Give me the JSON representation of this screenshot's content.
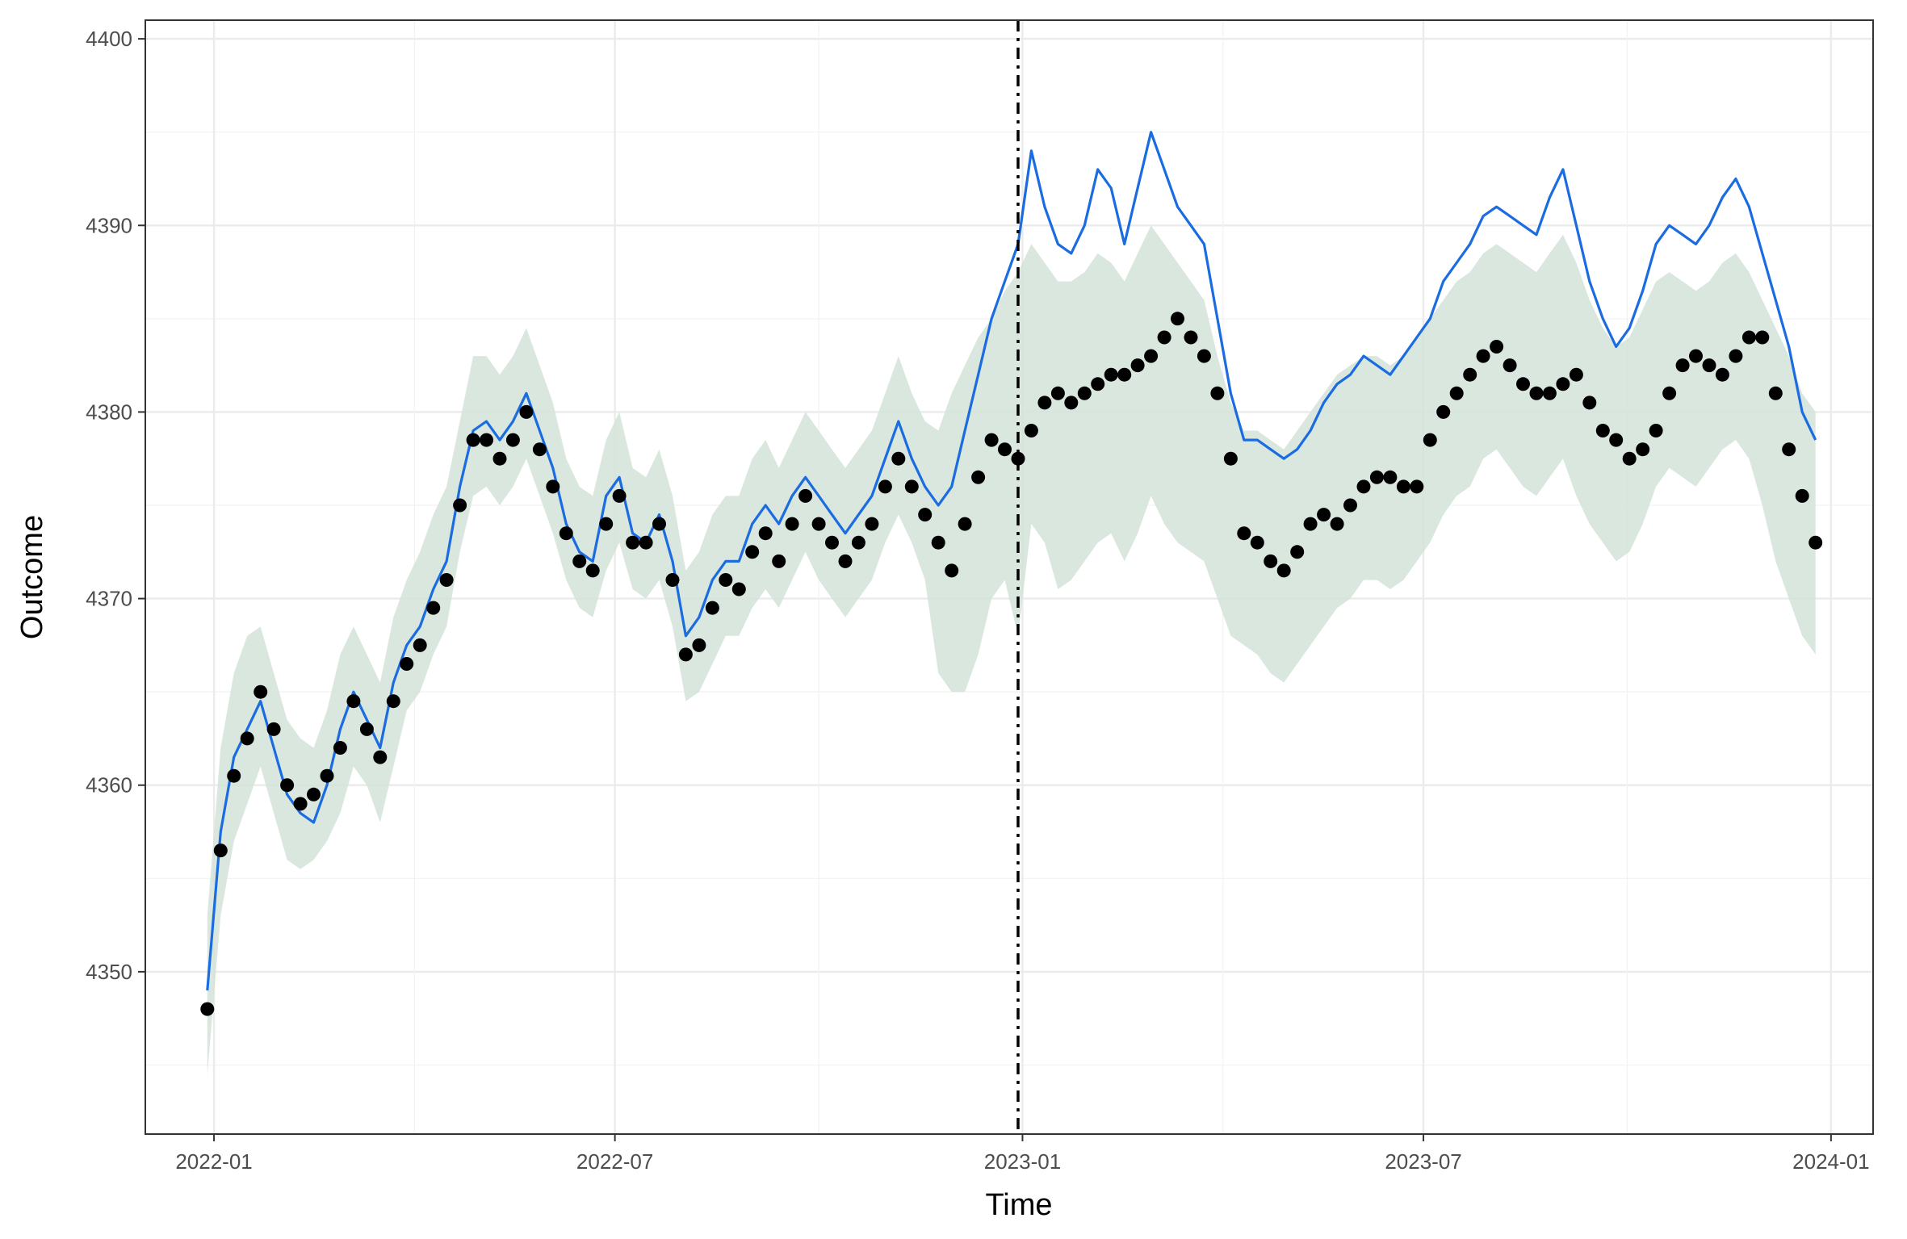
{
  "chart_data": {
    "type": "line",
    "xlabel": "Time",
    "ylabel": "Outcome",
    "xlim": [
      "2021-12-01",
      "2024-01-20"
    ],
    "ylim": [
      4341.3,
      4401.0
    ],
    "x_ticks": [
      {
        "date": "2022-01-01",
        "label": "2022-01"
      },
      {
        "date": "2022-07-01",
        "label": "2022-07"
      },
      {
        "date": "2023-01-01",
        "label": "2023-01"
      },
      {
        "date": "2023-07-01",
        "label": "2023-07"
      },
      {
        "date": "2024-01-01",
        "label": "2024-01"
      }
    ],
    "y_ticks": [
      4350,
      4360,
      4370,
      4380,
      4390,
      4400
    ],
    "grid": true,
    "intervention_date": "2022-12-30",
    "series": [
      {
        "kind": "points",
        "color": "#000000",
        "x": [
          "2021-12-29",
          "2022-01-04",
          "2022-01-10",
          "2022-01-16",
          "2022-01-22",
          "2022-01-28",
          "2022-02-03",
          "2022-02-09",
          "2022-02-15",
          "2022-02-21",
          "2022-02-27",
          "2022-03-05",
          "2022-03-11",
          "2022-03-17",
          "2022-03-23",
          "2022-03-29",
          "2022-04-04",
          "2022-04-10",
          "2022-04-16",
          "2022-04-22",
          "2022-04-28",
          "2022-05-04",
          "2022-05-10",
          "2022-05-16",
          "2022-05-22",
          "2022-05-28",
          "2022-06-03",
          "2022-06-09",
          "2022-06-15",
          "2022-06-21",
          "2022-06-27",
          "2022-07-03",
          "2022-07-09",
          "2022-07-15",
          "2022-07-21",
          "2022-07-27",
          "2022-08-02",
          "2022-08-08",
          "2022-08-14",
          "2022-08-20",
          "2022-08-26",
          "2022-09-01",
          "2022-09-07",
          "2022-09-13",
          "2022-09-19",
          "2022-09-25",
          "2022-10-01",
          "2022-10-07",
          "2022-10-13",
          "2022-10-19",
          "2022-10-25",
          "2022-10-31",
          "2022-11-06",
          "2022-11-12",
          "2022-11-18",
          "2022-11-24",
          "2022-11-30",
          "2022-12-06",
          "2022-12-12",
          "2022-12-18",
          "2022-12-24",
          "2022-12-30",
          "2023-01-05",
          "2023-01-11",
          "2023-01-17",
          "2023-01-23",
          "2023-01-29",
          "2023-02-04",
          "2023-02-10",
          "2023-02-16",
          "2023-02-22",
          "2023-02-28",
          "2023-03-06",
          "2023-03-12",
          "2023-03-18",
          "2023-03-24",
          "2023-03-30",
          "2023-04-05",
          "2023-04-11",
          "2023-04-17",
          "2023-04-23",
          "2023-04-29",
          "2023-05-05",
          "2023-05-11",
          "2023-05-17",
          "2023-05-23",
          "2023-05-29",
          "2023-06-04",
          "2023-06-10",
          "2023-06-16",
          "2023-06-22",
          "2023-06-28",
          "2023-07-04",
          "2023-07-10",
          "2023-07-16",
          "2023-07-22",
          "2023-07-28",
          "2023-08-03",
          "2023-08-09",
          "2023-08-15",
          "2023-08-21",
          "2023-08-27",
          "2023-09-02",
          "2023-09-08",
          "2023-09-14",
          "2023-09-20",
          "2023-09-26",
          "2023-10-02",
          "2023-10-08",
          "2023-10-14",
          "2023-10-20",
          "2023-10-26",
          "2023-11-01",
          "2023-11-07",
          "2023-11-13",
          "2023-11-19",
          "2023-11-25",
          "2023-12-01",
          "2023-12-07",
          "2023-12-13",
          "2023-12-19",
          "2023-12-25"
        ],
        "y": [
          4348.0,
          4356.5,
          4360.5,
          4362.5,
          4365.0,
          4363.0,
          4360.0,
          4359.0,
          4359.5,
          4360.5,
          4362.0,
          4364.5,
          4363.0,
          4361.5,
          4364.5,
          4366.5,
          4367.5,
          4369.5,
          4371.0,
          4375.0,
          4378.5,
          4378.5,
          4377.5,
          4378.5,
          4380.0,
          4378.0,
          4376.0,
          4373.5,
          4372.0,
          4371.5,
          4374.0,
          4375.5,
          4373.0,
          4373.0,
          4374.0,
          4371.0,
          4367.0,
          4367.5,
          4369.5,
          4371.0,
          4370.5,
          4372.5,
          4373.5,
          4372.0,
          4374.0,
          4375.5,
          4374.0,
          4373.0,
          4372.0,
          4373.0,
          4374.0,
          4376.0,
          4377.5,
          4376.0,
          4374.5,
          4373.0,
          4371.5,
          4374.0,
          4376.5,
          4378.5,
          4378.0,
          4377.5,
          4379.0,
          4380.5,
          4381.0,
          4380.5,
          4381.0,
          4381.5,
          4382.0,
          4382.0,
          4382.5,
          4383.0,
          4384.0,
          4385.0,
          4384.0,
          4383.0,
          4381.0,
          4377.5,
          4373.5,
          4373.0,
          4372.0,
          4371.5,
          4372.5,
          4374.0,
          4374.5,
          4374.0,
          4375.0,
          4376.0,
          4376.5,
          4376.5,
          4376.0,
          4376.0,
          4378.5,
          4380.0,
          4381.0,
          4382.0,
          4383.0,
          4383.5,
          4382.5,
          4381.5,
          4381.0,
          4381.0,
          4381.5,
          4382.0,
          4380.5,
          4379.0,
          4378.5,
          4377.5,
          4378.0,
          4379.0,
          4381.0,
          4382.5,
          4383.0,
          4382.5,
          4382.0,
          4383.0,
          4384.0,
          4384.0,
          4381.0,
          4378.0,
          4375.5,
          4373.0
        ]
      },
      {
        "kind": "line",
        "color": "#1a6ce0",
        "x": [
          "2021-12-29",
          "2022-01-04",
          "2022-01-10",
          "2022-01-16",
          "2022-01-22",
          "2022-01-28",
          "2022-02-03",
          "2022-02-09",
          "2022-02-15",
          "2022-02-21",
          "2022-02-27",
          "2022-03-05",
          "2022-03-11",
          "2022-03-17",
          "2022-03-23",
          "2022-03-29",
          "2022-04-04",
          "2022-04-10",
          "2022-04-16",
          "2022-04-22",
          "2022-04-28",
          "2022-05-04",
          "2022-05-10",
          "2022-05-16",
          "2022-05-22",
          "2022-05-28",
          "2022-06-03",
          "2022-06-09",
          "2022-06-15",
          "2022-06-21",
          "2022-06-27",
          "2022-07-03",
          "2022-07-09",
          "2022-07-15",
          "2022-07-21",
          "2022-07-27",
          "2022-08-02",
          "2022-08-08",
          "2022-08-14",
          "2022-08-20",
          "2022-08-26",
          "2022-09-01",
          "2022-09-07",
          "2022-09-13",
          "2022-09-19",
          "2022-09-25",
          "2022-10-01",
          "2022-10-07",
          "2022-10-13",
          "2022-10-19",
          "2022-10-25",
          "2022-10-31",
          "2022-11-06",
          "2022-11-12",
          "2022-11-18",
          "2022-11-24",
          "2022-11-30",
          "2022-12-06",
          "2022-12-12",
          "2022-12-18",
          "2022-12-24",
          "2022-12-30",
          "2023-01-05",
          "2023-01-11",
          "2023-01-17",
          "2023-01-23",
          "2023-01-29",
          "2023-02-04",
          "2023-02-10",
          "2023-02-16",
          "2023-02-22",
          "2023-02-28",
          "2023-03-06",
          "2023-03-12",
          "2023-03-18",
          "2023-03-24",
          "2023-03-30",
          "2023-04-05",
          "2023-04-11",
          "2023-04-17",
          "2023-04-23",
          "2023-04-29",
          "2023-05-05",
          "2023-05-11",
          "2023-05-17",
          "2023-05-23",
          "2023-05-29",
          "2023-06-04",
          "2023-06-10",
          "2023-06-16",
          "2023-06-22",
          "2023-06-28",
          "2023-07-04",
          "2023-07-10",
          "2023-07-16",
          "2023-07-22",
          "2023-07-28",
          "2023-08-03",
          "2023-08-09",
          "2023-08-15",
          "2023-08-21",
          "2023-08-27",
          "2023-09-02",
          "2023-09-08",
          "2023-09-14",
          "2023-09-20",
          "2023-09-26",
          "2023-10-02",
          "2023-10-08",
          "2023-10-14",
          "2023-10-20",
          "2023-10-26",
          "2023-11-01",
          "2023-11-07",
          "2023-11-13",
          "2023-11-19",
          "2023-11-25",
          "2023-12-01",
          "2023-12-07",
          "2023-12-13",
          "2023-12-19",
          "2023-12-25"
        ],
        "y": [
          4349.0,
          4357.5,
          4361.5,
          4363.0,
          4364.5,
          4362.0,
          4359.5,
          4358.5,
          4358.0,
          4360.0,
          4363.0,
          4365.0,
          4363.5,
          4362.0,
          4365.5,
          4367.5,
          4368.5,
          4370.5,
          4372.0,
          4376.0,
          4379.0,
          4379.5,
          4378.5,
          4379.5,
          4381.0,
          4379.0,
          4377.0,
          4374.0,
          4372.5,
          4372.0,
          4375.5,
          4376.5,
          4373.5,
          4373.0,
          4374.5,
          4372.0,
          4368.0,
          4369.0,
          4371.0,
          4372.0,
          4372.0,
          4374.0,
          4375.0,
          4374.0,
          4375.5,
          4376.5,
          4375.5,
          4374.5,
          4373.5,
          4374.5,
          4375.5,
          4377.5,
          4379.5,
          4377.5,
          4376.0,
          4375.0,
          4376.0,
          4379.0,
          4382.0,
          4385.0,
          4387.0,
          4389.0,
          4394.0,
          4391.0,
          4389.0,
          4388.5,
          4390.0,
          4393.0,
          4392.0,
          4389.0,
          4392.0,
          4395.0,
          4393.0,
          4391.0,
          4390.0,
          4389.0,
          4385.0,
          4381.0,
          4378.5,
          4378.5,
          4378.0,
          4377.5,
          4378.0,
          4379.0,
          4380.5,
          4381.5,
          4382.0,
          4383.0,
          4382.5,
          4382.0,
          4383.0,
          4384.0,
          4385.0,
          4387.0,
          4388.0,
          4389.0,
          4390.5,
          4391.0,
          4390.5,
          4390.0,
          4389.5,
          4391.5,
          4393.0,
          4390.0,
          4387.0,
          4385.0,
          4383.5,
          4384.5,
          4386.5,
          4389.0,
          4390.0,
          4389.5,
          4389.0,
          4390.0,
          4391.5,
          4392.5,
          4391.0,
          4388.5,
          4386.0,
          4383.5,
          4380.0,
          4378.5
        ]
      },
      {
        "kind": "band",
        "color": "#d4e3d9",
        "x": [
          "2021-12-29",
          "2022-01-04",
          "2022-01-10",
          "2022-01-16",
          "2022-01-22",
          "2022-01-28",
          "2022-02-03",
          "2022-02-09",
          "2022-02-15",
          "2022-02-21",
          "2022-02-27",
          "2022-03-05",
          "2022-03-11",
          "2022-03-17",
          "2022-03-23",
          "2022-03-29",
          "2022-04-04",
          "2022-04-10",
          "2022-04-16",
          "2022-04-22",
          "2022-04-28",
          "2022-05-04",
          "2022-05-10",
          "2022-05-16",
          "2022-05-22",
          "2022-05-28",
          "2022-06-03",
          "2022-06-09",
          "2022-06-15",
          "2022-06-21",
          "2022-06-27",
          "2022-07-03",
          "2022-07-09",
          "2022-07-15",
          "2022-07-21",
          "2022-07-27",
          "2022-08-02",
          "2022-08-08",
          "2022-08-14",
          "2022-08-20",
          "2022-08-26",
          "2022-09-01",
          "2022-09-07",
          "2022-09-13",
          "2022-09-19",
          "2022-09-25",
          "2022-10-01",
          "2022-10-07",
          "2022-10-13",
          "2022-10-19",
          "2022-10-25",
          "2022-10-31",
          "2022-11-06",
          "2022-11-12",
          "2022-11-18",
          "2022-11-24",
          "2022-11-30",
          "2022-12-06",
          "2022-12-12",
          "2022-12-18",
          "2022-12-24",
          "2022-12-30",
          "2023-01-05",
          "2023-01-11",
          "2023-01-17",
          "2023-01-23",
          "2023-01-29",
          "2023-02-04",
          "2023-02-10",
          "2023-02-16",
          "2023-02-22",
          "2023-02-28",
          "2023-03-06",
          "2023-03-12",
          "2023-03-18",
          "2023-03-24",
          "2023-03-30",
          "2023-04-05",
          "2023-04-11",
          "2023-04-17",
          "2023-04-23",
          "2023-04-29",
          "2023-05-05",
          "2023-05-11",
          "2023-05-17",
          "2023-05-23",
          "2023-05-29",
          "2023-06-04",
          "2023-06-10",
          "2023-06-16",
          "2023-06-22",
          "2023-06-28",
          "2023-07-04",
          "2023-07-10",
          "2023-07-16",
          "2023-07-22",
          "2023-07-28",
          "2023-08-03",
          "2023-08-09",
          "2023-08-15",
          "2023-08-21",
          "2023-08-27",
          "2023-09-02",
          "2023-09-08",
          "2023-09-14",
          "2023-09-20",
          "2023-09-26",
          "2023-10-02",
          "2023-10-08",
          "2023-10-14",
          "2023-10-20",
          "2023-10-26",
          "2023-11-01",
          "2023-11-07",
          "2023-11-13",
          "2023-11-19",
          "2023-11-25",
          "2023-12-01",
          "2023-12-07",
          "2023-12-13",
          "2023-12-19",
          "2023-12-25"
        ],
        "lower": [
          4344.5,
          4353.0,
          4357.0,
          4359.0,
          4361.0,
          4358.5,
          4356.0,
          4355.5,
          4356.0,
          4357.0,
          4358.5,
          4361.0,
          4360.0,
          4358.0,
          4361.0,
          4364.0,
          4365.0,
          4367.0,
          4368.5,
          4372.5,
          4375.5,
          4376.0,
          4375.0,
          4376.0,
          4377.5,
          4375.5,
          4373.5,
          4371.0,
          4369.5,
          4369.0,
          4371.5,
          4373.0,
          4370.5,
          4370.0,
          4371.0,
          4368.5,
          4364.5,
          4365.0,
          4366.5,
          4368.0,
          4368.0,
          4369.5,
          4370.5,
          4369.5,
          4371.0,
          4372.5,
          4371.0,
          4370.0,
          4369.0,
          4370.0,
          4371.0,
          4373.0,
          4374.5,
          4373.0,
          4371.0,
          4366.0,
          4365.0,
          4365.0,
          4367.0,
          4370.0,
          4371.0,
          4368.0,
          4374.0,
          4373.0,
          4370.5,
          4371.0,
          4372.0,
          4373.0,
          4373.5,
          4372.0,
          4373.5,
          4375.5,
          4374.0,
          4373.0,
          4372.5,
          4372.0,
          4370.0,
          4368.0,
          4367.5,
          4367.0,
          4366.0,
          4365.5,
          4366.5,
          4367.5,
          4368.5,
          4369.5,
          4370.0,
          4371.0,
          4371.0,
          4370.5,
          4371.0,
          4372.0,
          4373.0,
          4374.5,
          4375.5,
          4376.0,
          4377.5,
          4378.0,
          4377.0,
          4376.0,
          4375.5,
          4376.5,
          4377.5,
          4375.5,
          4374.0,
          4373.0,
          4372.0,
          4372.5,
          4374.0,
          4376.0,
          4377.0,
          4376.5,
          4376.0,
          4377.0,
          4378.0,
          4378.5,
          4377.5,
          4375.0,
          4372.0,
          4370.0,
          4368.0,
          4367.0
        ],
        "upper": [
          4353.0,
          4362.0,
          4366.0,
          4368.0,
          4368.5,
          4366.0,
          4363.5,
          4362.5,
          4362.0,
          4364.0,
          4367.0,
          4368.5,
          4367.0,
          4365.5,
          4369.0,
          4371.0,
          4372.5,
          4374.5,
          4376.0,
          4379.5,
          4383.0,
          4383.0,
          4382.0,
          4383.0,
          4384.5,
          4382.5,
          4380.5,
          4377.5,
          4376.0,
          4375.5,
          4378.5,
          4380.0,
          4377.0,
          4376.5,
          4378.0,
          4375.5,
          4371.5,
          4372.5,
          4374.5,
          4375.5,
          4375.5,
          4377.5,
          4378.5,
          4377.0,
          4378.5,
          4380.0,
          4379.0,
          4378.0,
          4377.0,
          4378.0,
          4379.0,
          4381.0,
          4383.0,
          4381.0,
          4379.5,
          4379.0,
          4381.0,
          4382.5,
          4384.0,
          4385.0,
          4386.5,
          4387.5,
          4389.0,
          4388.0,
          4387.0,
          4387.0,
          4387.5,
          4388.5,
          4388.0,
          4387.0,
          4388.5,
          4390.0,
          4389.0,
          4388.0,
          4387.0,
          4386.0,
          4383.0,
          4380.5,
          4379.0,
          4379.0,
          4378.5,
          4378.0,
          4379.0,
          4380.0,
          4381.0,
          4382.0,
          4382.5,
          4383.0,
          4383.0,
          4382.5,
          4383.0,
          4384.0,
          4385.0,
          4386.0,
          4387.0,
          4387.5,
          4388.5,
          4389.0,
          4388.5,
          4388.0,
          4387.5,
          4388.5,
          4389.5,
          4388.0,
          4386.0,
          4384.5,
          4383.5,
          4384.0,
          4385.5,
          4387.0,
          4387.5,
          4387.0,
          4386.5,
          4387.0,
          4388.0,
          4388.5,
          4387.5,
          4386.0,
          4384.5,
          4383.0,
          4381.0,
          4380.0
        ]
      }
    ]
  }
}
